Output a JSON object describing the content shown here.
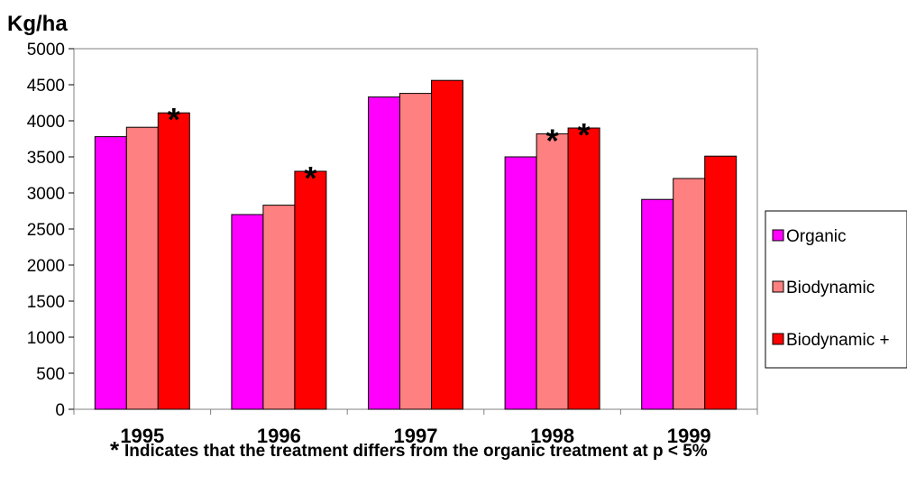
{
  "chart_data": {
    "type": "bar",
    "ylabel": "Kg/ha",
    "ylim": [
      0,
      5000
    ],
    "yticks": [
      0,
      500,
      1000,
      1500,
      2000,
      2500,
      3000,
      3500,
      4000,
      4500,
      5000
    ],
    "categories": [
      "1995",
      "1996",
      "1997",
      "1998",
      "1999"
    ],
    "series": [
      {
        "name": "Organic",
        "color": "#ff00ff",
        "values": [
          3780,
          2700,
          4330,
          3500,
          2910
        ]
      },
      {
        "name": "Biodynamic",
        "color": "#ff8080",
        "values": [
          3910,
          2830,
          4380,
          3820,
          3200
        ]
      },
      {
        "name": "Biodynamic +",
        "color": "#ff0000",
        "values": [
          4110,
          3300,
          4560,
          3900,
          3510
        ]
      }
    ],
    "significance_markers": [
      {
        "category": "1995",
        "series": "Biodynamic +",
        "symbol": "*"
      },
      {
        "category": "1996",
        "series": "Biodynamic +",
        "symbol": "*"
      },
      {
        "category": "1998",
        "series": "Biodynamic",
        "symbol": "*"
      },
      {
        "category": "1998",
        "series": "Biodynamic +",
        "symbol": "*"
      }
    ],
    "legend_position": "right",
    "grid": false,
    "footnote": {
      "symbol": "*",
      "text": "Indicates that the treatment differs from the organic treatment at p < 5%"
    }
  }
}
